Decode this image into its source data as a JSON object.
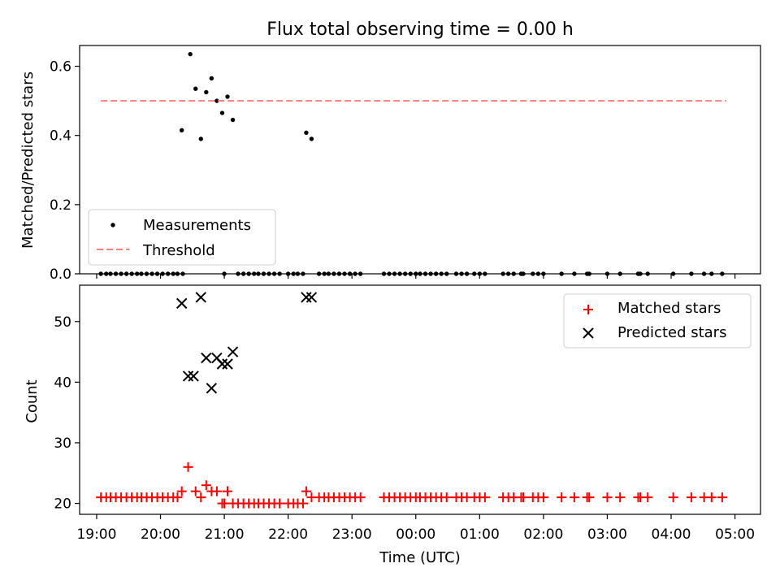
{
  "chart_data": [
    {
      "type": "scatter",
      "title": "Flux total observing time = 0.00 h",
      "xlabel": "",
      "ylabel": "Matched/Predicted stars",
      "xlim": [
        "18:44",
        "05:24"
      ],
      "ylim": [
        0,
        0.66
      ],
      "yticks": [
        "0.0",
        "0.2",
        "0.4",
        "0.6"
      ],
      "grid": false,
      "legend": "lower-left",
      "series": [
        {
          "name": "Measurements",
          "marker": "dot",
          "color": "#000000",
          "points": [
            [
              "19:04",
              0
            ],
            [
              "19:09",
              0
            ],
            [
              "19:13",
              0
            ],
            [
              "19:18",
              0
            ],
            [
              "19:23",
              0
            ],
            [
              "19:28",
              0
            ],
            [
              "19:33",
              0
            ],
            [
              "19:38",
              0
            ],
            [
              "19:42",
              0
            ],
            [
              "19:47",
              0
            ],
            [
              "19:52",
              0
            ],
            [
              "19:57",
              0
            ],
            [
              "20:02",
              0
            ],
            [
              "20:07",
              0
            ],
            [
              "20:12",
              0
            ],
            [
              "20:16",
              0
            ],
            [
              "20:21",
              0.0
            ],
            [
              "20:20",
              0.415
            ],
            [
              "20:28",
              0.635
            ],
            [
              "20:33",
              0.535
            ],
            [
              "20:38",
              0.39
            ],
            [
              "20:43",
              0.525
            ],
            [
              "20:48",
              0.565
            ],
            [
              "20:53",
              0.5
            ],
            [
              "20:58",
              0.465
            ],
            [
              "21:00",
              0
            ],
            [
              "21:03",
              0.512
            ],
            [
              "21:08",
              0.445
            ],
            [
              "21:13",
              0
            ],
            [
              "21:18",
              0
            ],
            [
              "21:23",
              0
            ],
            [
              "21:28",
              0
            ],
            [
              "21:32",
              0
            ],
            [
              "21:37",
              0
            ],
            [
              "21:42",
              0
            ],
            [
              "21:47",
              0
            ],
            [
              "21:52",
              0
            ],
            [
              "22:00",
              0
            ],
            [
              "22:05",
              0
            ],
            [
              "22:09",
              0
            ],
            [
              "22:14",
              0
            ],
            [
              "22:17",
              0.408
            ],
            [
              "22:22",
              0.39
            ],
            [
              "22:29",
              0
            ],
            [
              "22:34",
              0
            ],
            [
              "22:38",
              0
            ],
            [
              "22:43",
              0
            ],
            [
              "22:48",
              0
            ],
            [
              "22:53",
              0
            ],
            [
              "22:58",
              0
            ],
            [
              "23:03",
              0
            ],
            [
              "23:08",
              0
            ],
            [
              "23:30",
              0
            ],
            [
              "23:35",
              0
            ],
            [
              "23:40",
              0
            ],
            [
              "23:45",
              0
            ],
            [
              "23:50",
              0
            ],
            [
              "23:55",
              0
            ],
            [
              "00:00",
              0
            ],
            [
              "00:04",
              0
            ],
            [
              "00:09",
              0
            ],
            [
              "00:14",
              0
            ],
            [
              "00:19",
              0
            ],
            [
              "00:24",
              0
            ],
            [
              "00:29",
              0
            ],
            [
              "00:38",
              0
            ],
            [
              "00:43",
              0
            ],
            [
              "00:48",
              0
            ],
            [
              "00:55",
              0
            ],
            [
              "01:00",
              0
            ],
            [
              "01:05",
              0
            ],
            [
              "01:22",
              0
            ],
            [
              "01:27",
              0
            ],
            [
              "01:32",
              0
            ],
            [
              "01:39",
              0
            ],
            [
              "01:41",
              0
            ],
            [
              "01:50",
              0
            ],
            [
              "01:55",
              0
            ],
            [
              "02:00",
              0
            ],
            [
              "02:17",
              0
            ],
            [
              "02:29",
              0
            ],
            [
              "02:41",
              0
            ],
            [
              "02:43",
              0
            ],
            [
              "03:00",
              0
            ],
            [
              "03:12",
              0
            ],
            [
              "03:29",
              0
            ],
            [
              "03:31",
              0
            ],
            [
              "03:38",
              0
            ],
            [
              "04:02",
              0
            ],
            [
              "04:19",
              0
            ],
            [
              "04:31",
              0
            ],
            [
              "04:38",
              0
            ],
            [
              "04:48",
              0
            ]
          ]
        },
        {
          "name": "Threshold",
          "marker": "dashed-line",
          "color": "#ff7f7f",
          "points": [
            [
              "19:04",
              0.5
            ],
            [
              "04:52",
              0.5
            ]
          ]
        }
      ]
    },
    {
      "type": "scatter",
      "title": "",
      "xlabel": "Time (UTC)",
      "ylabel": "Count",
      "xlim": [
        "18:44",
        "05:24"
      ],
      "ylim": [
        18.2,
        56
      ],
      "yticks": [
        "20",
        "30",
        "40",
        "50"
      ],
      "xticks": [
        "19:00",
        "20:00",
        "21:00",
        "22:00",
        "23:00",
        "00:00",
        "01:00",
        "02:00",
        "03:00",
        "04:00",
        "05:00"
      ],
      "grid": false,
      "legend": "upper-right",
      "series": [
        {
          "name": "Matched stars",
          "marker": "plus",
          "color": "#ff0000",
          "points": [
            [
              "19:04",
              21
            ],
            [
              "19:09",
              21
            ],
            [
              "19:13",
              21
            ],
            [
              "19:18",
              21
            ],
            [
              "19:23",
              21
            ],
            [
              "19:28",
              21
            ],
            [
              "19:33",
              21
            ],
            [
              "19:38",
              21
            ],
            [
              "19:42",
              21
            ],
            [
              "19:47",
              21
            ],
            [
              "19:52",
              21
            ],
            [
              "19:57",
              21
            ],
            [
              "20:02",
              21
            ],
            [
              "20:07",
              21
            ],
            [
              "20:12",
              21
            ],
            [
              "20:16",
              21
            ],
            [
              "20:20",
              22
            ],
            [
              "20:26",
              26
            ],
            [
              "20:33",
              22
            ],
            [
              "20:38",
              21
            ],
            [
              "20:43",
              23
            ],
            [
              "20:48",
              22
            ],
            [
              "20:53",
              22
            ],
            [
              "20:58",
              20
            ],
            [
              "21:00",
              20
            ],
            [
              "21:03",
              22
            ],
            [
              "21:08",
              20
            ],
            [
              "21:13",
              20
            ],
            [
              "21:18",
              20
            ],
            [
              "21:23",
              20
            ],
            [
              "21:28",
              20
            ],
            [
              "21:32",
              20
            ],
            [
              "21:37",
              20
            ],
            [
              "21:42",
              20
            ],
            [
              "21:47",
              20
            ],
            [
              "21:52",
              20
            ],
            [
              "22:00",
              20
            ],
            [
              "22:05",
              20
            ],
            [
              "22:09",
              20
            ],
            [
              "22:14",
              20
            ],
            [
              "22:17",
              22
            ],
            [
              "22:22",
              21
            ],
            [
              "22:29",
              21
            ],
            [
              "22:34",
              21
            ],
            [
              "22:38",
              21
            ],
            [
              "22:43",
              21
            ],
            [
              "22:48",
              21
            ],
            [
              "22:53",
              21
            ],
            [
              "22:58",
              21
            ],
            [
              "23:03",
              21
            ],
            [
              "23:08",
              21
            ],
            [
              "23:30",
              21
            ],
            [
              "23:35",
              21
            ],
            [
              "23:40",
              21
            ],
            [
              "23:45",
              21
            ],
            [
              "23:50",
              21
            ],
            [
              "23:55",
              21
            ],
            [
              "00:00",
              21
            ],
            [
              "00:04",
              21
            ],
            [
              "00:09",
              21
            ],
            [
              "00:14",
              21
            ],
            [
              "00:19",
              21
            ],
            [
              "00:24",
              21
            ],
            [
              "00:29",
              21
            ],
            [
              "00:38",
              21
            ],
            [
              "00:43",
              21
            ],
            [
              "00:48",
              21
            ],
            [
              "00:55",
              21
            ],
            [
              "01:00",
              21
            ],
            [
              "01:05",
              21
            ],
            [
              "01:22",
              21
            ],
            [
              "01:27",
              21
            ],
            [
              "01:32",
              21
            ],
            [
              "01:39",
              21
            ],
            [
              "01:41",
              21
            ],
            [
              "01:50",
              21
            ],
            [
              "01:55",
              21
            ],
            [
              "02:00",
              21
            ],
            [
              "02:17",
              21
            ],
            [
              "02:29",
              21
            ],
            [
              "02:41",
              21
            ],
            [
              "02:43",
              21
            ],
            [
              "03:00",
              21
            ],
            [
              "03:12",
              21
            ],
            [
              "03:29",
              21
            ],
            [
              "03:31",
              21
            ],
            [
              "03:38",
              21
            ],
            [
              "04:02",
              21
            ],
            [
              "04:19",
              21
            ],
            [
              "04:31",
              21
            ],
            [
              "04:38",
              21
            ],
            [
              "04:48",
              21
            ]
          ]
        },
        {
          "name": "Predicted stars",
          "marker": "x",
          "color": "#000000",
          "points": [
            [
              "20:20",
              53
            ],
            [
              "20:26",
              41
            ],
            [
              "20:31",
              41
            ],
            [
              "20:38",
              54
            ],
            [
              "20:43",
              44
            ],
            [
              "20:48",
              39
            ],
            [
              "20:53",
              44
            ],
            [
              "20:58",
              43
            ],
            [
              "21:03",
              43
            ],
            [
              "21:08",
              45
            ],
            [
              "22:17",
              54
            ],
            [
              "22:22",
              54
            ]
          ]
        }
      ]
    }
  ]
}
